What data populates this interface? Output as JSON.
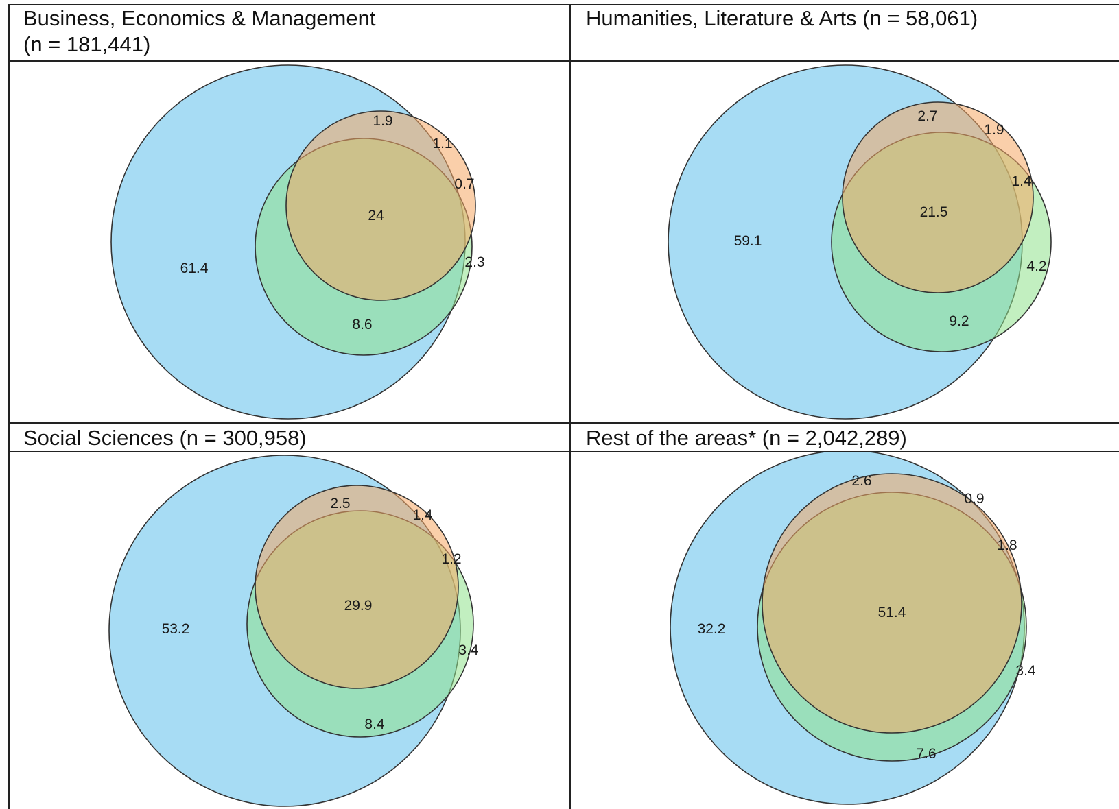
{
  "chart_data": [
    {
      "type": "venn",
      "title": "Business, Economics & Management",
      "subtitle": "(n = 181,441)",
      "regions": {
        "blue_only": 61.4,
        "blue_orange": 1.9,
        "orange_only": 1.1,
        "orange_green": 0.7,
        "all_three": 24,
        "green_only": 2.3,
        "blue_green": 8.6
      }
    },
    {
      "type": "venn",
      "title": "Humanities, Literature & Arts (n = 58,061)",
      "subtitle": "",
      "regions": {
        "blue_only": 59.1,
        "blue_orange": 2.7,
        "orange_only": 1.9,
        "orange_green": 1.4,
        "all_three": 21.5,
        "green_only": 4.2,
        "blue_green": 9.2
      }
    },
    {
      "type": "venn",
      "title": "Social Sciences (n = 300,958)",
      "subtitle": "",
      "regions": {
        "blue_only": 53.2,
        "blue_orange": 2.5,
        "orange_only": 1.4,
        "orange_green": 1.2,
        "all_three": 29.9,
        "green_only": 3.4,
        "blue_green": 8.4
      }
    },
    {
      "type": "venn",
      "title": "Rest of the areas* (n = 2,042,289)",
      "subtitle": "",
      "regions": {
        "blue_only": 32.2,
        "blue_orange": 2.6,
        "orange_only": 0.9,
        "orange_green": 1.8,
        "all_three": 51.4,
        "green_only": 3.4,
        "blue_green": 7.6
      }
    }
  ],
  "colors": {
    "blue": "#9dd8f3",
    "orange": "#f6a864",
    "green": "#8fe28c",
    "outline": "#333333",
    "rule": "#222222"
  }
}
